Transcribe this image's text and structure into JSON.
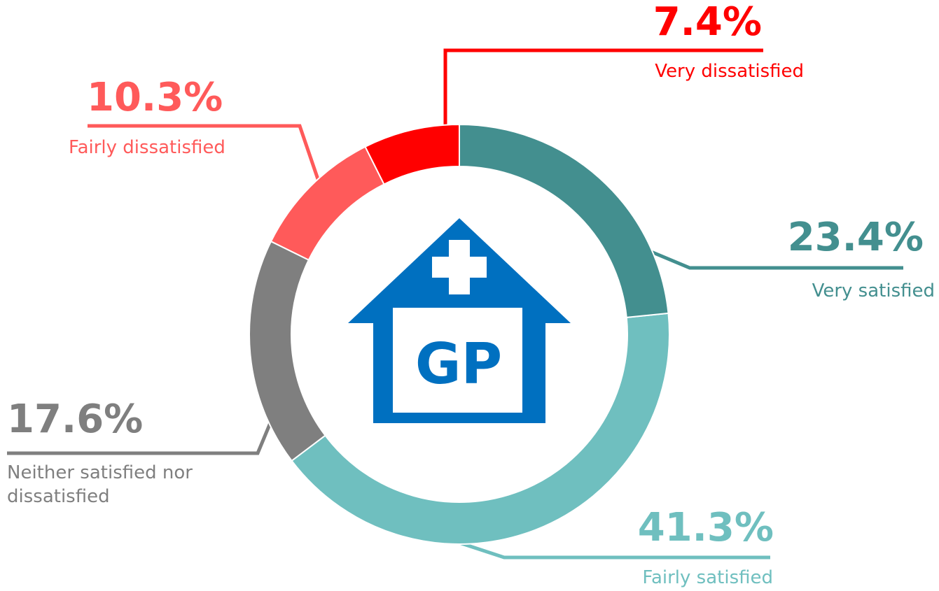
{
  "chart_data": {
    "type": "donut",
    "categories": [
      "Very satisfied",
      "Fairly satisfied",
      "Neither satisfied nor dissatisfied",
      "Fairly dissatisfied",
      "Very dissatisfied"
    ],
    "values": [
      23.4,
      41.3,
      17.6,
      10.3,
      7.4
    ],
    "value_labels": [
      "23.4%",
      "41.3%",
      "17.6%",
      "10.3%",
      "7.4%"
    ],
    "colors": [
      "#438f8f",
      "#6fbfbf",
      "#7f7f7f",
      "#ff5a5a",
      "#ff0000"
    ],
    "icon_text": "GP"
  }
}
